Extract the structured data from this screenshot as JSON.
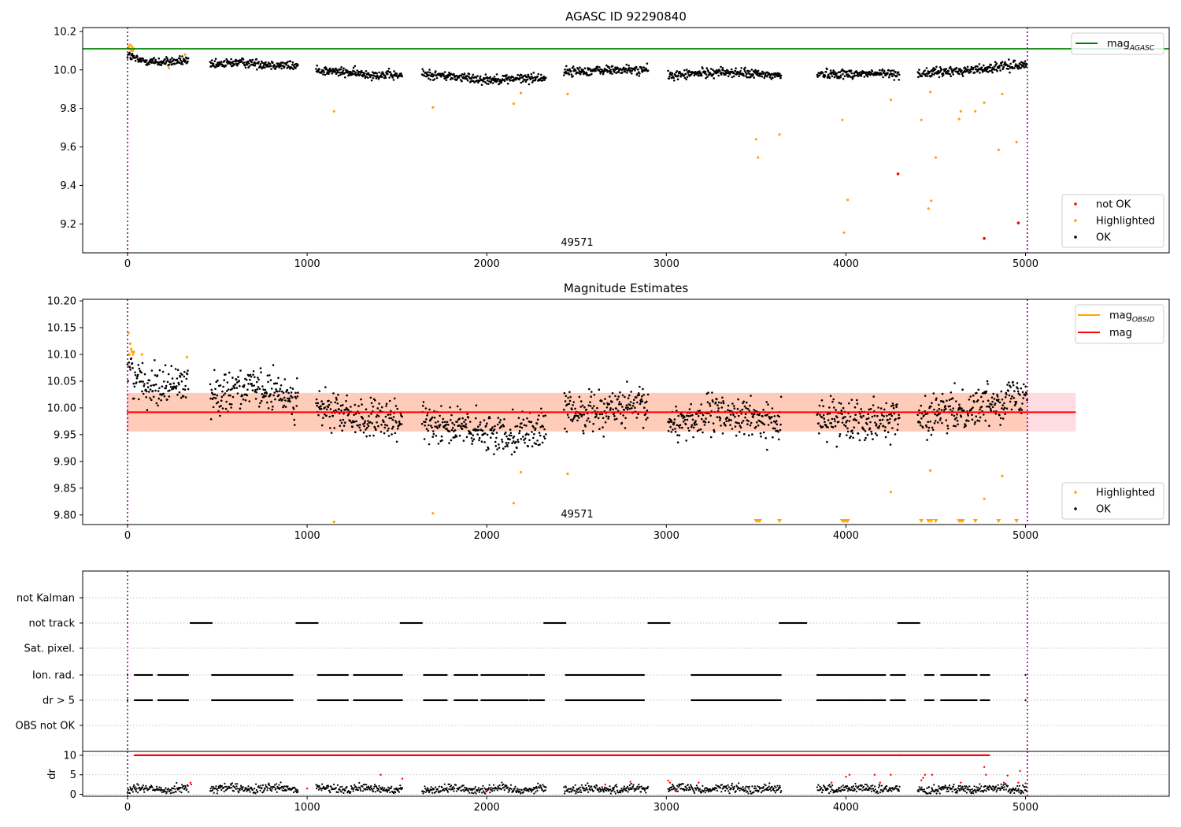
{
  "chart_data": [
    {
      "type": "scatter",
      "title": "AGASC ID 92290840",
      "xlabel": "",
      "ylabel": "",
      "xlim": [
        -250,
        5800
      ],
      "ylim": [
        9.05,
        10.22
      ],
      "xticks": [
        0,
        1000,
        2000,
        3000,
        4000,
        5000
      ],
      "yticks": [
        9.2,
        9.4,
        9.6,
        9.8,
        10.0,
        10.2
      ],
      "vlines": [
        0,
        5010
      ],
      "annotation": {
        "text": "49571",
        "x": 2500,
        "y": 9.07
      },
      "hline": {
        "name": "mag_AGASC",
        "value": 10.11,
        "color": "#008000"
      },
      "segments": [
        [
          0,
          340
        ],
        [
          460,
          950
        ],
        [
          1050,
          1530
        ],
        [
          1640,
          2330
        ],
        [
          2430,
          2900
        ],
        [
          3010,
          3640
        ],
        [
          3840,
          4300
        ],
        [
          4400,
          5010
        ]
      ],
      "ok_trend": [
        [
          0,
          10.08
        ],
        [
          60,
          10.05
        ],
        [
          200,
          10.04
        ],
        [
          340,
          10.05
        ],
        [
          460,
          10.02
        ],
        [
          600,
          10.04
        ],
        [
          950,
          10.02
        ],
        [
          1050,
          10.0
        ],
        [
          1300,
          9.98
        ],
        [
          1530,
          9.97
        ],
        [
          1640,
          9.98
        ],
        [
          2000,
          9.95
        ],
        [
          2330,
          9.96
        ],
        [
          2430,
          9.99
        ],
        [
          2700,
          10.0
        ],
        [
          2900,
          10.0
        ],
        [
          3010,
          9.97
        ],
        [
          3300,
          9.99
        ],
        [
          3640,
          9.97
        ],
        [
          3840,
          9.98
        ],
        [
          4300,
          9.98
        ],
        [
          4400,
          9.98
        ],
        [
          4700,
          10.0
        ],
        [
          5010,
          10.03
        ]
      ],
      "highlighted": [
        [
          5,
          10.12
        ],
        [
          10,
          10.11
        ],
        [
          15,
          10.13
        ],
        [
          20,
          10.1
        ],
        [
          25,
          10.12
        ],
        [
          30,
          10.1
        ],
        [
          35,
          10.11
        ],
        [
          1150,
          9.785
        ],
        [
          1700,
          9.805
        ],
        [
          2150,
          9.825
        ],
        [
          2190,
          9.88
        ],
        [
          2450,
          9.875
        ],
        [
          3500,
          9.64
        ],
        [
          3510,
          9.545
        ],
        [
          3630,
          9.665
        ],
        [
          3980,
          9.74
        ],
        [
          3990,
          9.155
        ],
        [
          4010,
          9.325
        ],
        [
          4250,
          9.845
        ],
        [
          4420,
          9.74
        ],
        [
          4460,
          9.28
        ],
        [
          4470,
          9.885
        ],
        [
          4475,
          9.32
        ],
        [
          4500,
          9.545
        ],
        [
          4630,
          9.745
        ],
        [
          4640,
          9.785
        ],
        [
          4720,
          9.785
        ],
        [
          4770,
          9.83
        ],
        [
          4850,
          9.585
        ],
        [
          4870,
          9.875
        ],
        [
          4950,
          9.625
        ],
        [
          230,
          10.01
        ],
        [
          320,
          10.08
        ]
      ],
      "not_ok": [
        [
          4290,
          9.46
        ],
        [
          4770,
          9.125
        ],
        [
          4960,
          9.205
        ]
      ],
      "legend": [
        {
          "label": "mag",
          "sub": "AGASC",
          "kind": "line",
          "color": "#008000"
        },
        {
          "label": "not OK",
          "kind": "dot",
          "color": "#ff0000"
        },
        {
          "label": "Highlighted",
          "kind": "dot",
          "color": "#ffa500"
        },
        {
          "label": "OK",
          "kind": "dot",
          "color": "#000000"
        }
      ]
    },
    {
      "type": "scatter",
      "title": "Magnitude Estimates",
      "xlabel": "",
      "ylabel": "",
      "xlim": [
        -250,
        5800
      ],
      "ylim": [
        9.782,
        10.203
      ],
      "xticks": [
        0,
        1000,
        2000,
        3000,
        4000,
        5000
      ],
      "yticks": [
        9.8,
        9.85,
        9.9,
        9.95,
        10.0,
        10.05,
        10.1,
        10.15,
        10.2
      ],
      "vlines": [
        0,
        5010
      ],
      "annotation": {
        "text": "49571",
        "x": 2500,
        "y": 9.792
      },
      "mag_line": {
        "name": "mag",
        "value": 9.992,
        "band": [
          9.956,
          10.028
        ],
        "x_range": [
          -5,
          5280
        ],
        "color": "#ff0000"
      },
      "segments": [
        [
          0,
          340
        ],
        [
          460,
          950
        ],
        [
          1050,
          1530
        ],
        [
          1640,
          2330
        ],
        [
          2430,
          2900
        ],
        [
          3010,
          3640
        ],
        [
          3840,
          4300
        ],
        [
          4400,
          5010
        ]
      ],
      "ok_trend": [
        [
          0,
          10.08
        ],
        [
          60,
          10.05
        ],
        [
          200,
          10.04
        ],
        [
          340,
          10.05
        ],
        [
          460,
          10.02
        ],
        [
          600,
          10.04
        ],
        [
          950,
          10.02
        ],
        [
          1050,
          10.0
        ],
        [
          1300,
          9.98
        ],
        [
          1530,
          9.97
        ],
        [
          1640,
          9.98
        ],
        [
          2000,
          9.95
        ],
        [
          2330,
          9.96
        ],
        [
          2430,
          9.99
        ],
        [
          2700,
          10.0
        ],
        [
          2900,
          10.0
        ],
        [
          3010,
          9.97
        ],
        [
          3300,
          9.99
        ],
        [
          3640,
          9.97
        ],
        [
          3840,
          9.98
        ],
        [
          4300,
          9.98
        ],
        [
          4400,
          9.98
        ],
        [
          4700,
          10.0
        ],
        [
          5010,
          10.03
        ]
      ],
      "highlighted": [
        [
          5,
          10.14
        ],
        [
          10,
          10.1
        ],
        [
          15,
          10.12
        ],
        [
          20,
          10.11
        ],
        [
          25,
          10.105
        ],
        [
          30,
          10.1
        ],
        [
          35,
          10.105
        ],
        [
          80,
          10.1
        ],
        [
          330,
          10.095
        ],
        [
          1150,
          9.787
        ],
        [
          1700,
          9.803
        ],
        [
          2150,
          9.822
        ],
        [
          2190,
          9.88
        ],
        [
          2450,
          9.877
        ],
        [
          4250,
          9.843
        ],
        [
          4470,
          9.883
        ],
        [
          4770,
          9.83
        ],
        [
          4870,
          9.873
        ]
      ],
      "clipped_markers": [
        3500,
        3510,
        3520,
        3630,
        3980,
        3990,
        4000,
        4010,
        4420,
        4460,
        4475,
        4500,
        4630,
        4640,
        4650,
        4720,
        4850,
        4950
      ],
      "legend": [
        {
          "label": "mag",
          "sub": "OBSID",
          "kind": "line",
          "color": "#ffa500"
        },
        {
          "label": "mag",
          "kind": "line",
          "color": "#ff0000"
        },
        {
          "label": "Highlighted",
          "kind": "dot",
          "color": "#ffa500"
        },
        {
          "label": "OK",
          "kind": "dot",
          "color": "#000000"
        }
      ]
    },
    {
      "type": "scatter",
      "title": "",
      "xlabel": "",
      "xlim": [
        -250,
        5800
      ],
      "xticks": [
        0,
        1000,
        2000,
        3000,
        4000,
        5000
      ],
      "vlines": [
        0,
        5010
      ],
      "flag_rows": [
        "not Kalman",
        "not track",
        "Sat. pixel.",
        "Ion. rad.",
        "dr > 5",
        "OBS not OK"
      ],
      "flag_ranges": {
        "not track": [
          [
            350,
            470
          ],
          [
            940,
            1060
          ],
          [
            1520,
            1640
          ],
          [
            2320,
            2440
          ],
          [
            2900,
            3020
          ],
          [
            3630,
            3780
          ],
          [
            4290,
            4410
          ]
        ],
        "Ion. rad.": [
          [
            40,
            140
          ],
          [
            170,
            340
          ],
          [
            470,
            920
          ],
          [
            1060,
            1230
          ],
          [
            1260,
            1530
          ],
          [
            1650,
            1780
          ],
          [
            1820,
            1950
          ],
          [
            1970,
            2230
          ],
          [
            2240,
            2320
          ],
          [
            2440,
            2880
          ],
          [
            3140,
            3640
          ],
          [
            3840,
            4220
          ],
          [
            4250,
            4330
          ],
          [
            4440,
            4490
          ],
          [
            4530,
            4730
          ],
          [
            4750,
            4800
          ]
        ],
        "dr > 5": [
          [
            40,
            140
          ],
          [
            170,
            340
          ],
          [
            470,
            920
          ],
          [
            1060,
            1230
          ],
          [
            1260,
            1530
          ],
          [
            1650,
            1780
          ],
          [
            1820,
            1950
          ],
          [
            1970,
            2230
          ],
          [
            2240,
            2320
          ],
          [
            2440,
            2880
          ],
          [
            3140,
            3640
          ],
          [
            3840,
            4220
          ],
          [
            4250,
            4330
          ],
          [
            4440,
            4490
          ],
          [
            4530,
            4730
          ],
          [
            4750,
            4800
          ]
        ]
      },
      "dr_axis": {
        "ylabel": "dr",
        "yticks": [
          0,
          5,
          10
        ],
        "ylim": [
          -0.5,
          11
        ]
      }
    }
  ]
}
